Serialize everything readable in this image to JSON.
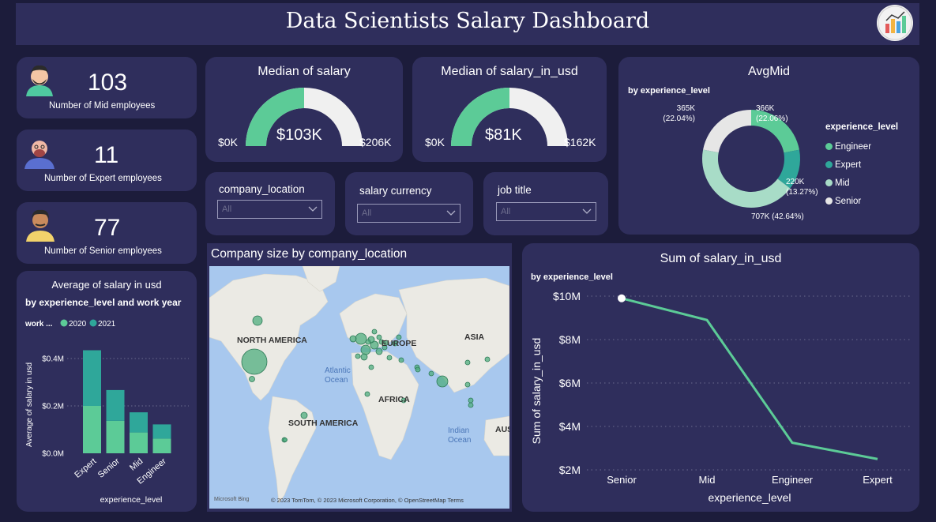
{
  "header": {
    "title": "Data Scientists Salary Dashboard"
  },
  "kpis": [
    {
      "value": "103",
      "label": "Number of Mid employees"
    },
    {
      "value": "11",
      "label": "Number of Expert employees"
    },
    {
      "value": "77",
      "label": "Number of Senior employees"
    }
  ],
  "gauges": [
    {
      "title": "Median of salary",
      "value_label": "$103K",
      "min_label": "$0K",
      "max_label": "$206K",
      "value": 103,
      "max": 206
    },
    {
      "title": "Median of salary_in_usd",
      "value_label": "$81K",
      "min_label": "$0K",
      "max_label": "$162K",
      "value": 81,
      "max": 162
    }
  ],
  "slicers": [
    {
      "title": "company_location",
      "value": "All"
    },
    {
      "title": "salary currency",
      "value": "All"
    },
    {
      "title": "job title",
      "value": "All"
    }
  ],
  "map": {
    "title": "Company size by company_location",
    "labels": {
      "na": "NORTH AMERICA",
      "eu": "EUROPE",
      "asia": "ASIA",
      "africa": "AFRICA",
      "sa": "SOUTH AMERICA",
      "atlantic": "Atlantic\nOcean",
      "indian": "Indian\nOcean",
      "aus": "AUS"
    },
    "credits": "© 2023 TomTom, © 2023 Microsoft Corporation, © OpenStreetMap  Terms",
    "brand": "Microsoft Bing"
  },
  "colors": {
    "engineer": "#5ccb97",
    "expert": "#2fa79a",
    "mid": "#a8dcc7",
    "senior": "#e6e6e6",
    "y2020": "#5ccb97",
    "y2021": "#2fa79a",
    "card": "#2f2e5c",
    "bg": "#1c1c3b"
  },
  "chart_data": [
    {
      "type": "pie",
      "title": "AvgMid",
      "subtitle": "by experience_level",
      "legend_title": "experience_level",
      "legend_position": "right",
      "slices": [
        {
          "name": "Engineer",
          "value": 366,
          "label": "366K",
          "pct": "(22.06%)"
        },
        {
          "name": "Expert",
          "value": 220,
          "label": "220K",
          "pct": "(13.27%)"
        },
        {
          "name": "Mid",
          "value": 707,
          "label": "707K (42.64%)",
          "pct": ""
        },
        {
          "name": "Senior",
          "value": 365,
          "label": "365K",
          "pct": "(22.04%)"
        }
      ]
    },
    {
      "type": "bar",
      "stacked": true,
      "title": "Average of salary in usd",
      "subtitle": "by experience_level and work year",
      "legend_title": "work ...",
      "legend_position": "top-left",
      "categories": [
        "Expert",
        "Senior",
        "Mid",
        "Engineer"
      ],
      "series": [
        {
          "name": "2020",
          "values": [
            0.2,
            0.137,
            0.088,
            0.062
          ]
        },
        {
          "name": "2021",
          "values": [
            0.235,
            0.13,
            0.085,
            0.06
          ]
        }
      ],
      "xlabel": "experience_level",
      "ylabel": "Average of salary in usd",
      "ylim": [
        0,
        0.45
      ],
      "yticks": [
        "$0.0M",
        "$0.2M",
        "$0.4M"
      ],
      "ytick_values": [
        0,
        0.2,
        0.4
      ]
    },
    {
      "type": "line",
      "title": "Sum of salary_in_usd",
      "subtitle": "by experience_level",
      "categories": [
        "Senior",
        "Mid",
        "Engineer",
        "Expert"
      ],
      "values": [
        9.9,
        8.9,
        3.25,
        2.5
      ],
      "xlabel": "experience_level",
      "ylabel": "Sum of salary_in_usd",
      "ylim": [
        2,
        10
      ],
      "yticks": [
        "$10M",
        "$8M",
        "$6M",
        "$4M",
        "$2M"
      ],
      "ytick_values": [
        10,
        8,
        6,
        4,
        2
      ],
      "grid": true
    }
  ]
}
